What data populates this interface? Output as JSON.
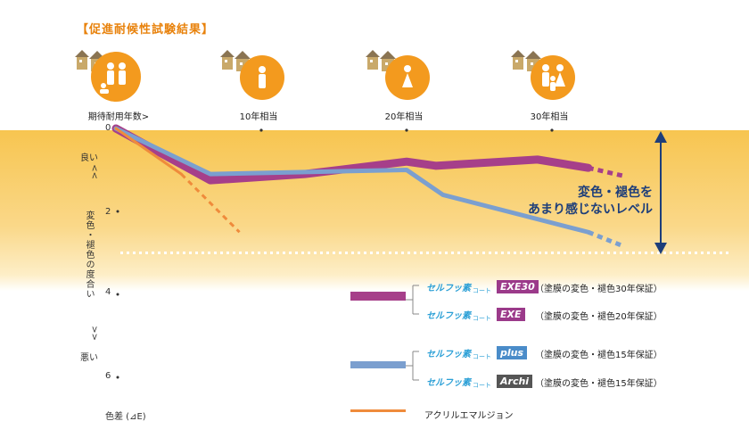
{
  "title": "【促進耐候性試験結果】",
  "milestones": [
    {
      "label": "期待耐用年数>"
    },
    {
      "label": "10年相当"
    },
    {
      "label": "20年相当"
    },
    {
      "label": "30年相当"
    }
  ],
  "y_axis": {
    "good_label": "良い",
    "good_arrow": "<<",
    "bad_arrow": ">>",
    "bad_label": "悪い",
    "title": "変色・褪色の度合い",
    "ticks": [
      "0",
      "2",
      "4",
      "6"
    ],
    "unit": "色差 (⊿E)"
  },
  "annotation": {
    "line1": "変色・褪色を",
    "line2": "あまり感じないレベル"
  },
  "legend": {
    "items": [
      {
        "brand": "セルフッ素",
        "sub": "コート",
        "tag": "EXE30",
        "tag_color": "#9b3a8a",
        "note": "（塗膜の変色・褪色30年保証）"
      },
      {
        "brand": "セルフッ素",
        "sub": "コート",
        "tag": "EXE",
        "tag_color": "#9b3a8a",
        "note": "（塗膜の変色・褪色20年保証）"
      },
      {
        "brand": "セルフッ素",
        "sub": "コート",
        "tag": "plus",
        "tag_color": "#4a8cc9",
        "note": "（塗膜の変色・褪色15年保証）"
      },
      {
        "brand": "セルフッ素",
        "sub": "コート",
        "tag": "Archi",
        "tag_color": "#555555",
        "note": "（塗膜の変色・褪色15年保証）"
      }
    ],
    "acrylic_label": "アクリルエマルジョン"
  },
  "colors": {
    "purple": "#a63f8a",
    "blue": "#7b9fcf",
    "orange": "#ef8b3b",
    "accent": "#f39a1e"
  },
  "chart_data": {
    "type": "line",
    "x_label": "",
    "y_label": "変色・褪色の度合い",
    "y_unit": "色差 (⊿E)",
    "y_range": [
      0,
      6
    ],
    "y_inverted": true,
    "x_ticks": [
      "10年相当",
      "20年相当",
      "30年相当"
    ],
    "x_tick_values": [
      10,
      20,
      30
    ],
    "x_range": [
      0,
      36
    ],
    "threshold": 3,
    "series": [
      {
        "name": "EXE",
        "color": "#a63f8a",
        "x": [
          0,
          6.5,
          13,
          20,
          22,
          29,
          32.5
        ],
        "y": [
          0,
          1.25,
          1.1,
          0.8,
          0.9,
          0.75,
          0.95
        ],
        "dashed_x": [
          32.5,
          35
        ],
        "dashed_y": [
          0.95,
          1.15
        ]
      },
      {
        "name": "plus / Archi",
        "color": "#7b9fcf",
        "x": [
          0,
          6.5,
          13,
          20,
          22.5,
          32.5
        ],
        "y": [
          0,
          1.1,
          1.05,
          1.0,
          1.6,
          2.5
        ],
        "dashed_x": [
          32.5,
          35
        ],
        "dashed_y": [
          2.5,
          2.85
        ]
      },
      {
        "name": "アクリルエマルジョン",
        "color": "#ef8b3b",
        "x": [
          0,
          4.5
        ],
        "y": [
          0,
          1.1
        ],
        "dashed_x": [
          4.5,
          8.5
        ],
        "dashed_y": [
          1.1,
          2.5
        ]
      }
    ]
  }
}
